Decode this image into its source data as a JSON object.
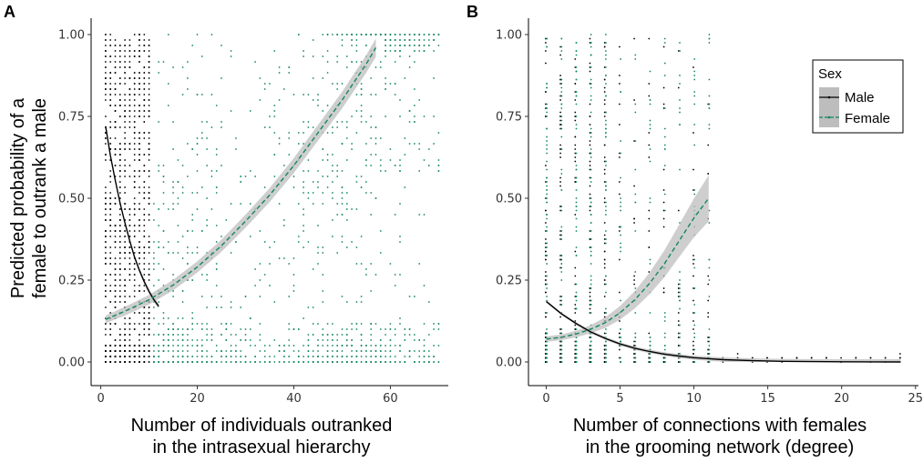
{
  "colors": {
    "male": "#000000",
    "female": "#13875f",
    "ribbon": "#bdbdbd"
  },
  "legend": {
    "title": "Sex",
    "entries": [
      "Male",
      "Female"
    ]
  },
  "chart_data": [
    {
      "panel": "A",
      "type": "scatter",
      "ylabel_lines": [
        "Predicted probability of a",
        "female to outrank a male"
      ],
      "xlabel_lines": [
        "Number of individuals outranked",
        "in the intrasexual hierarchy"
      ],
      "xlim": [
        -2,
        72
      ],
      "ylim": [
        -0.05,
        1.05
      ],
      "xticks": [
        0,
        20,
        40,
        60
      ],
      "xtick_labels": [
        "0",
        "20",
        "40",
        "60"
      ],
      "yticks": [
        0,
        0.25,
        0.5,
        0.75,
        1
      ],
      "ytick_labels": [
        "0.00",
        "0.25",
        "0.50",
        "0.75",
        "1.00"
      ],
      "series": [
        {
          "name": "Male",
          "line": "solid",
          "x": [
            1,
            2,
            3,
            4,
            5,
            6,
            7,
            8,
            9,
            10,
            11,
            12
          ],
          "y": [
            0.72,
            0.63,
            0.555,
            0.485,
            0.425,
            0.37,
            0.32,
            0.28,
            0.245,
            0.215,
            0.19,
            0.17
          ],
          "band": 0.006,
          "points_x_range": [
            1,
            10
          ],
          "points_density": 140
        },
        {
          "name": "Female",
          "line": "dashed",
          "x": [
            1,
            5,
            10,
            15,
            20,
            25,
            30,
            35,
            40,
            45,
            50,
            55,
            57
          ],
          "y": [
            0.13,
            0.155,
            0.19,
            0.235,
            0.29,
            0.355,
            0.43,
            0.51,
            0.6,
            0.7,
            0.8,
            0.91,
            0.96
          ],
          "band": 0.02,
          "points_x_range": [
            11,
            70
          ],
          "points_density": 30
        }
      ]
    },
    {
      "panel": "B",
      "type": "scatter",
      "ylabel_lines": [],
      "xlabel_lines": [
        "Number of connections with females",
        "in the grooming network (degree)"
      ],
      "xlim": [
        -1.2,
        25.2
      ],
      "ylim": [
        -0.05,
        1.05
      ],
      "xticks": [
        0,
        5,
        10,
        15,
        20,
        25
      ],
      "xtick_labels": [
        "0",
        "5",
        "10",
        "15",
        "20",
        "25"
      ],
      "yticks": [
        0,
        0.25,
        0.5,
        0.75,
        1
      ],
      "ytick_labels": [
        "0.00",
        "0.25",
        "0.50",
        "0.75",
        "1.00"
      ],
      "series": [
        {
          "name": "Male",
          "line": "solid",
          "x": [
            0,
            1,
            2,
            3,
            4,
            5,
            6,
            7,
            8,
            9,
            10,
            11,
            12,
            14,
            16,
            18,
            20,
            22,
            24
          ],
          "y": [
            0.185,
            0.148,
            0.118,
            0.092,
            0.072,
            0.055,
            0.042,
            0.032,
            0.024,
            0.018,
            0.013,
            0.01,
            0.007,
            0.004,
            0.002,
            0.001,
            0.0005,
            0.0002,
            0.0001
          ],
          "band": 0.006,
          "points_x": [
            0,
            1,
            2,
            3,
            4,
            5,
            6,
            7,
            8,
            9,
            10,
            11,
            12,
            13,
            14,
            15,
            16,
            17,
            18,
            19,
            20,
            21,
            22,
            23,
            24
          ]
        },
        {
          "name": "Female",
          "line": "dashed",
          "x": [
            0,
            1,
            2,
            3,
            4,
            5,
            6,
            7,
            8,
            9,
            10,
            11
          ],
          "y": [
            0.07,
            0.075,
            0.085,
            0.1,
            0.12,
            0.15,
            0.19,
            0.24,
            0.3,
            0.37,
            0.44,
            0.5
          ],
          "band_min": 0.008,
          "band_max": 0.07,
          "points_x": [
            0,
            1,
            2,
            3,
            4,
            5,
            6,
            7,
            8,
            9,
            10,
            11
          ]
        }
      ]
    }
  ]
}
